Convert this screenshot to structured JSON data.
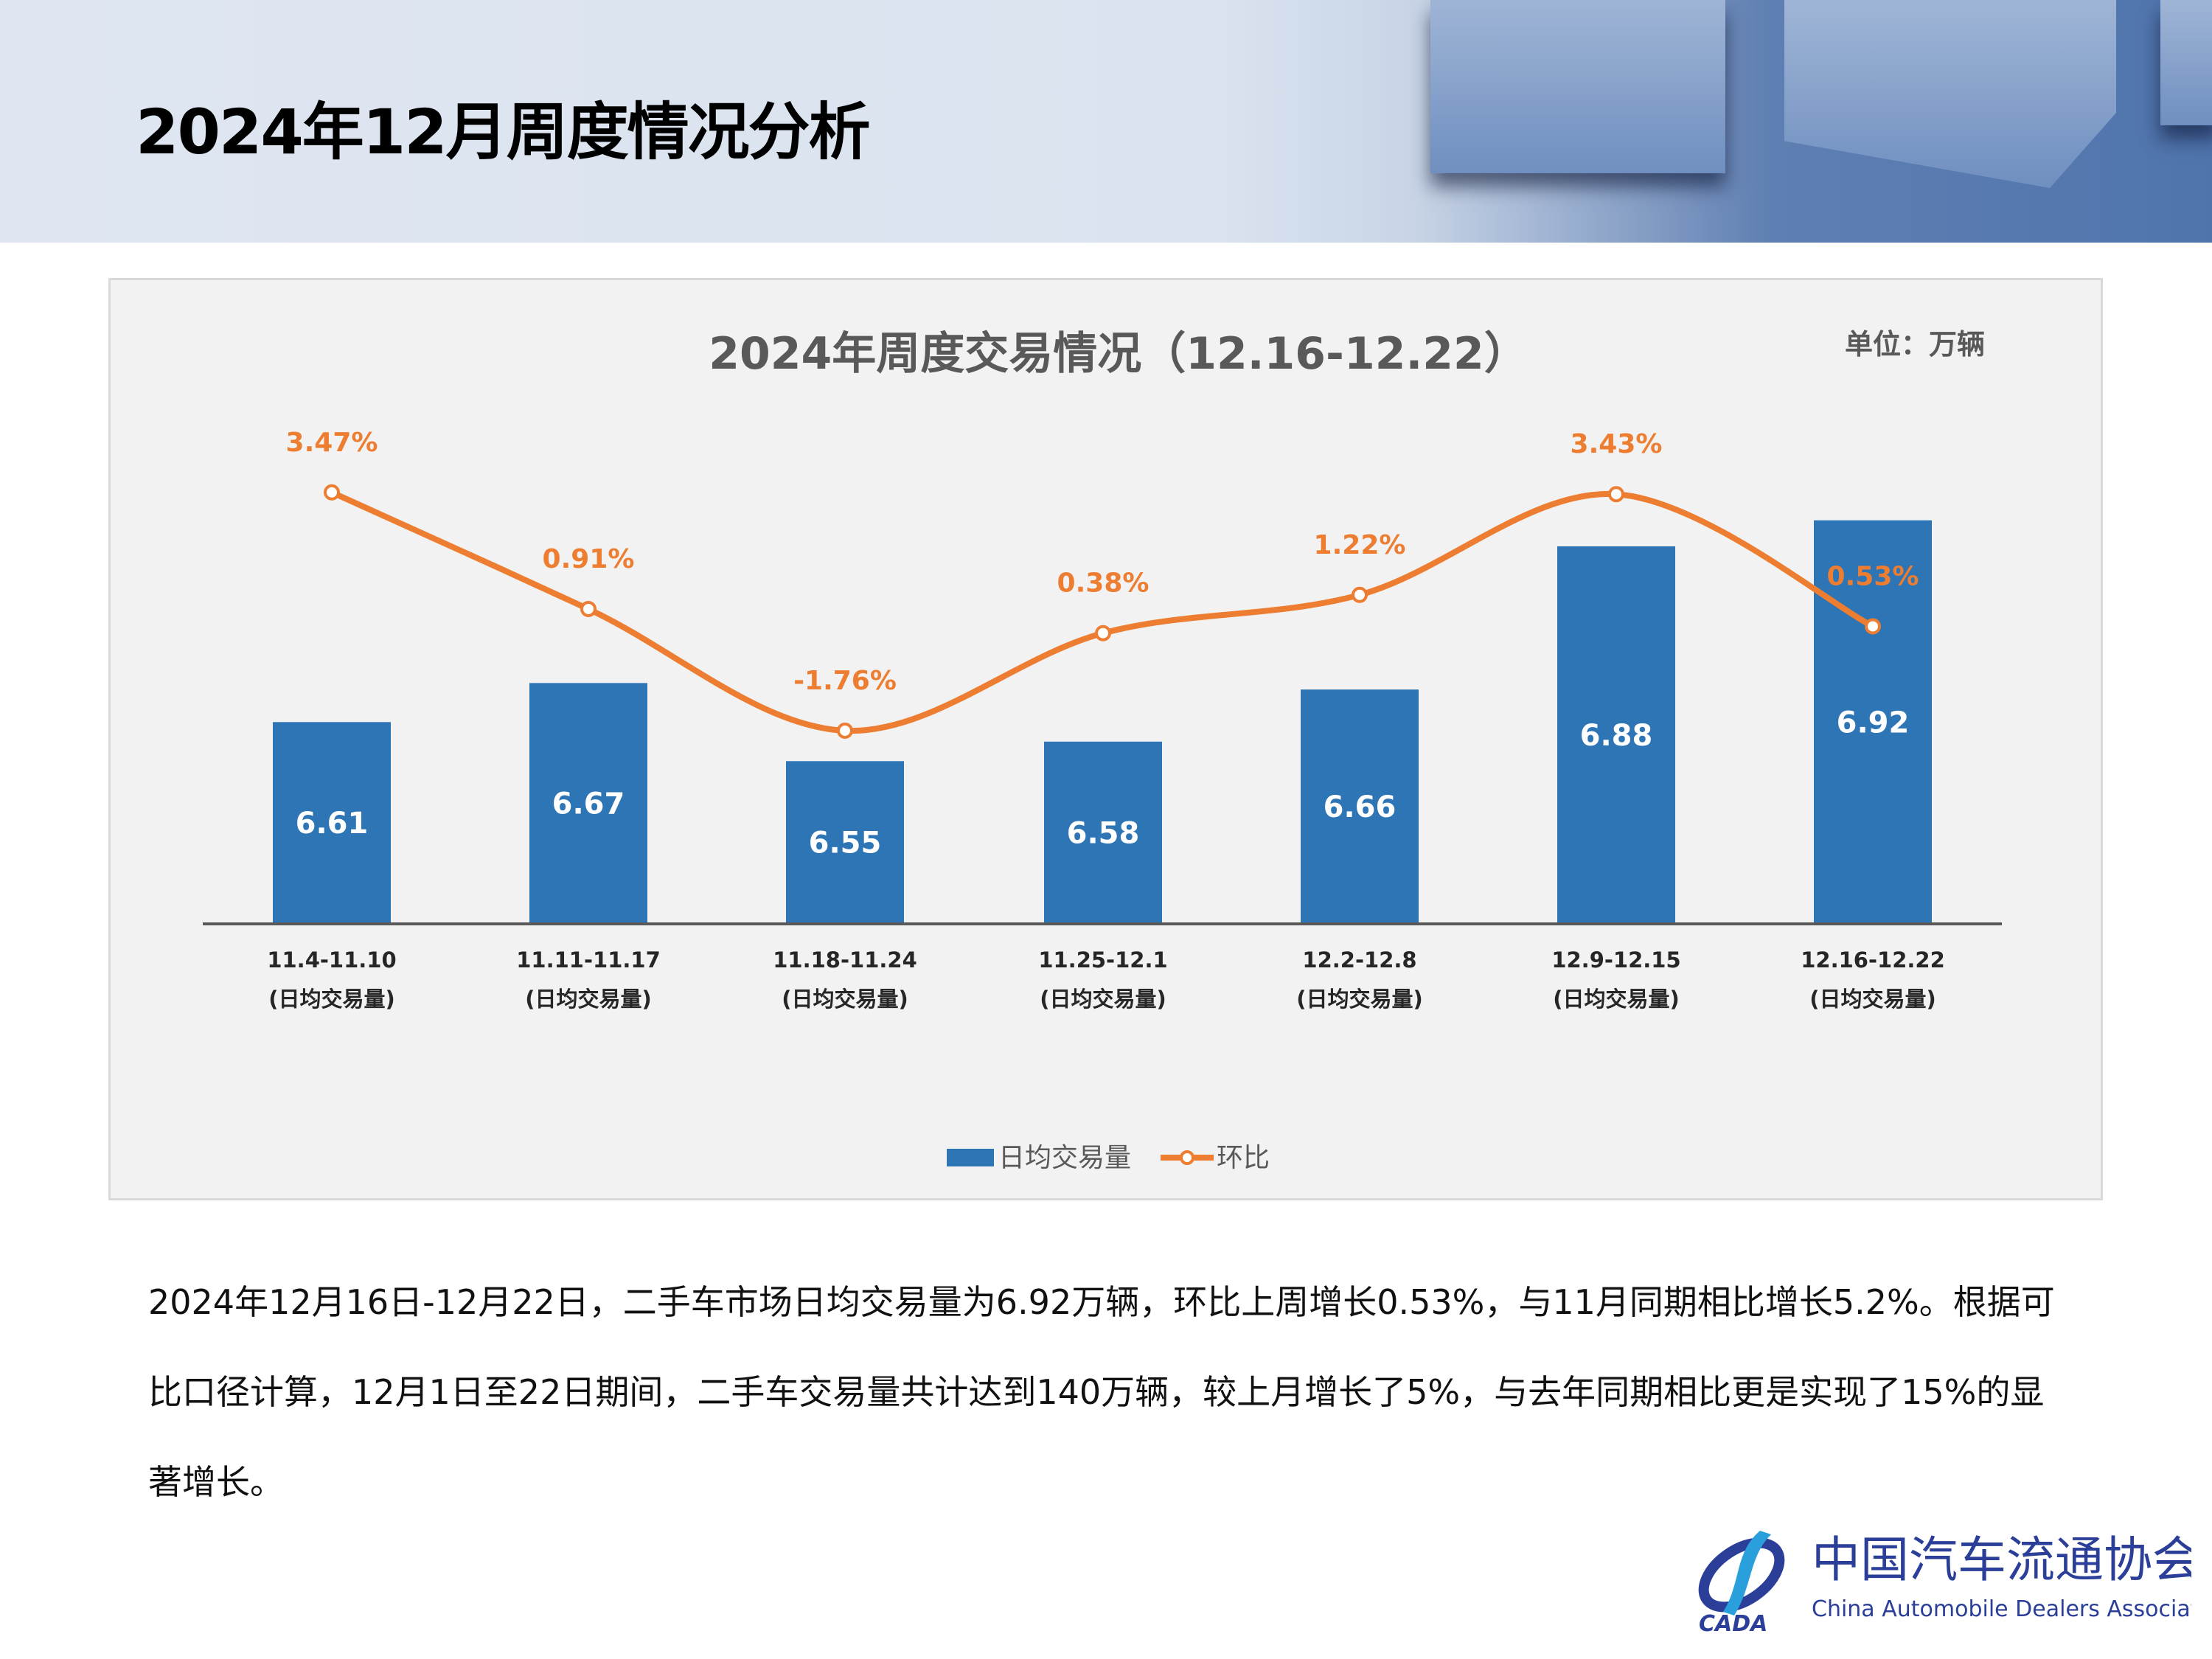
{
  "page_title": "2024年12月周度情况分析",
  "paragraph": "2024年12月16日-12月22日，二手车市场日均交易量为6.92万辆，环比上周增长0.53%，与11月同期相比增长5.2%。根据可比口径计算，12月1日至22日期间，二手车交易量共计达到140万辆，较上月增长了5%，与去年同期相比更是实现了15%的显著增长。",
  "logo": {
    "name_cn": "中国汽车流通协会",
    "name_en": "China Automobile Dealers Association",
    "abbr": "CADA"
  },
  "chart_data": {
    "type": "bar+line",
    "title": "2024年周度交易情况（12.16-12.22）",
    "unit_label": "单位：万辆",
    "categories": [
      "11.4-11.10",
      "11.11-11.17",
      "11.18-11.24",
      "11.25-12.1",
      "12.2-12.8",
      "12.9-12.15",
      "12.16-12.22"
    ],
    "category_sublabel": "(日均交易量)",
    "series": [
      {
        "name": "日均交易量",
        "type": "bar",
        "values": [
          6.61,
          6.67,
          6.55,
          6.58,
          6.66,
          6.88,
          6.92
        ],
        "labels": [
          "6.61",
          "6.67",
          "6.55",
          "6.58",
          "6.66",
          "6.88",
          "6.92"
        ],
        "color": "#2e75b6"
      },
      {
        "name": "环比",
        "type": "line",
        "smooth": true,
        "values": [
          3.47,
          0.91,
          -1.76,
          0.38,
          1.22,
          3.43,
          0.53
        ],
        "labels": [
          "3.47%",
          "0.91%",
          "-1.76%",
          "0.38%",
          "1.22%",
          "3.43%",
          "0.53%"
        ],
        "color": "#ed7d31"
      }
    ],
    "ylim": [
      6.3,
      7.0
    ],
    "y2lim": [
      -6,
      4
    ],
    "grid": false,
    "legend": "bottom"
  }
}
